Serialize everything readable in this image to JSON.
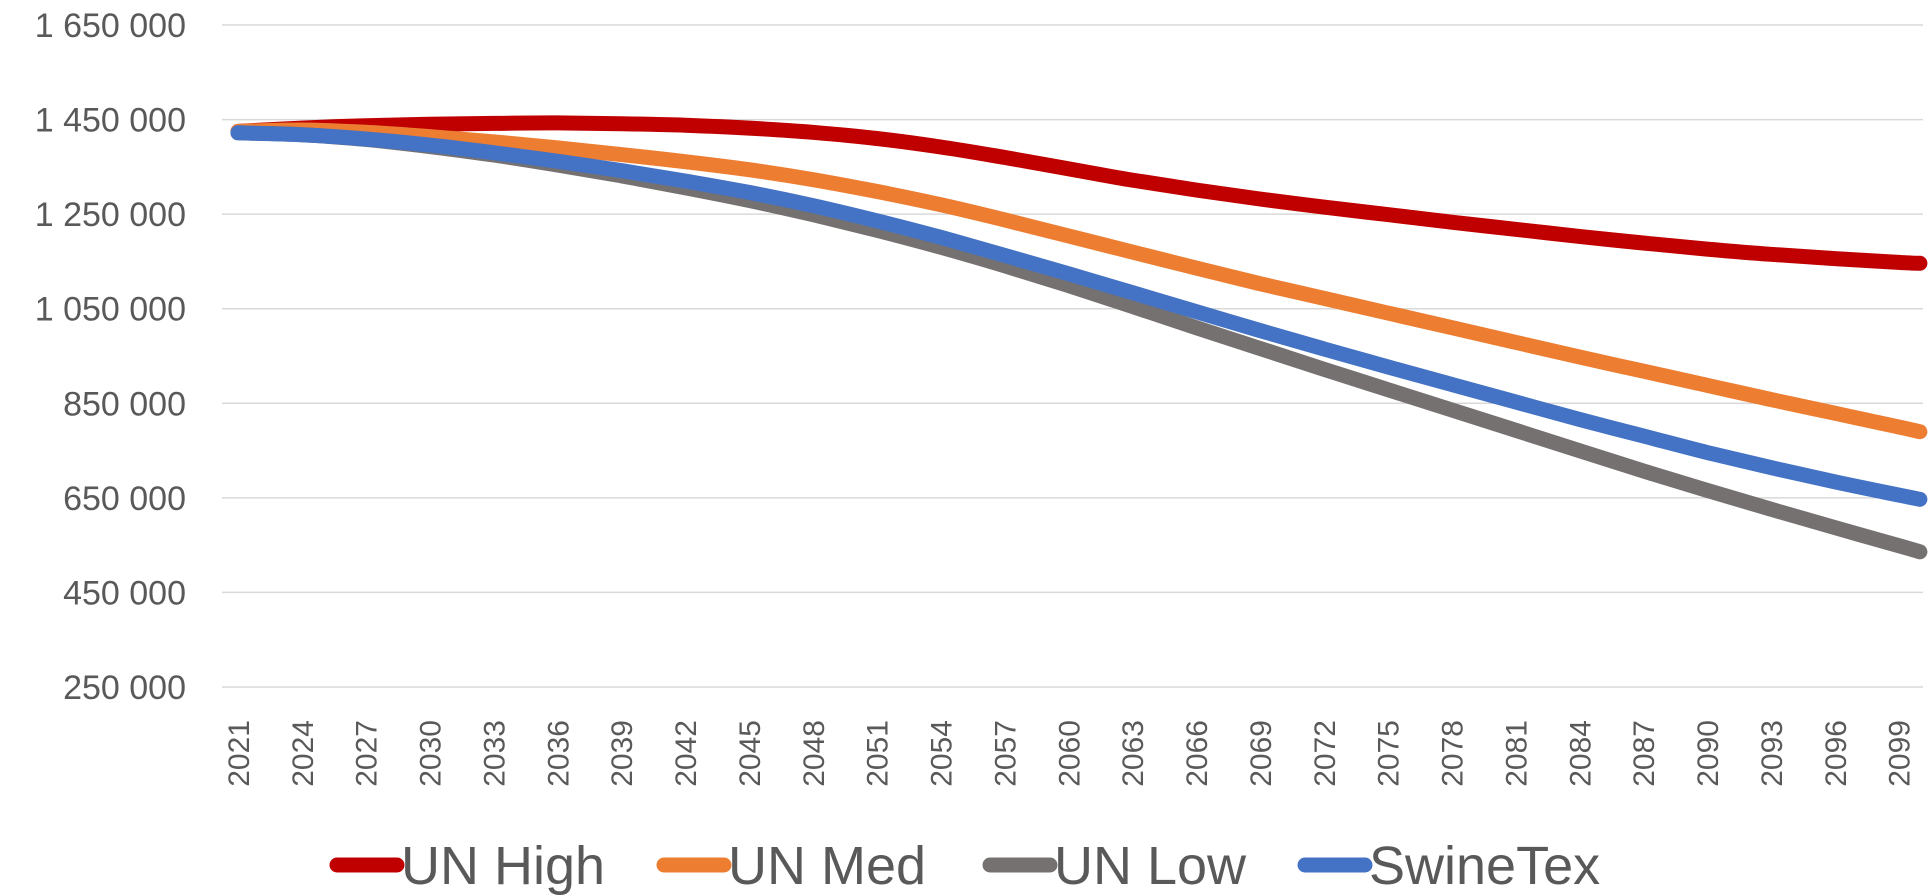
{
  "chart_data": {
    "type": "line",
    "title": "",
    "xlabel": "",
    "ylabel": "",
    "ylim": [
      250000,
      1650000
    ],
    "yticks": [
      "250 000",
      "450 000",
      "650 000",
      "850 000",
      "1 050 000",
      "1 250 000",
      "1 450 000",
      "1 650 000"
    ],
    "ytick_values": [
      250000,
      450000,
      650000,
      850000,
      1050000,
      1250000,
      1450000,
      1650000
    ],
    "xlim": [
      2021,
      2100
    ],
    "xticks": [
      "2021",
      "2024",
      "2027",
      "2030",
      "2033",
      "2036",
      "2039",
      "2042",
      "2045",
      "2048",
      "2051",
      "2054",
      "2057",
      "2060",
      "2063",
      "2066",
      "2069",
      "2072",
      "2075",
      "2078",
      "2081",
      "2084",
      "2087",
      "2090",
      "2093",
      "2096",
      "2099"
    ],
    "grid": true,
    "legend_position": "bottom",
    "x": [
      2021,
      2024,
      2027,
      2030,
      2033,
      2036,
      2039,
      2042,
      2045,
      2048,
      2051,
      2054,
      2057,
      2060,
      2063,
      2066,
      2069,
      2072,
      2075,
      2078,
      2081,
      2084,
      2087,
      2090,
      2093,
      2096,
      2099,
      2100
    ],
    "series": [
      {
        "name": "UN High",
        "color": "#c00000",
        "values": [
          1425000,
          1432000,
          1437000,
          1440000,
          1442000,
          1443000,
          1441000,
          1438000,
          1432000,
          1423000,
          1410000,
          1392000,
          1370000,
          1346000,
          1322000,
          1301000,
          1282000,
          1265000,
          1249000,
          1233000,
          1218000,
          1203000,
          1189000,
          1176000,
          1165000,
          1156000,
          1148000,
          1146000
        ]
      },
      {
        "name": "UN Med",
        "color": "#ed7d31",
        "values": [
          1425000,
          1428000,
          1423000,
          1414000,
          1403000,
          1390000,
          1376000,
          1361000,
          1344000,
          1323000,
          1298000,
          1270000,
          1238000,
          1204000,
          1170000,
          1136000,
          1103000,
          1072000,
          1041000,
          1010000,
          979000,
          948000,
          918000,
          888000,
          858000,
          829000,
          800000,
          790000
        ]
      },
      {
        "name": "UN Low",
        "color": "#767171",
        "values": [
          1422000,
          1418000,
          1408000,
          1393000,
          1375000,
          1354000,
          1331000,
          1306000,
          1279000,
          1249000,
          1216000,
          1180000,
          1141000,
          1099000,
          1055000,
          1010000,
          966000,
          922000,
          879000,
          836000,
          793000,
          750000,
          707000,
          666000,
          626000,
          587000,
          549000,
          536000
        ]
      },
      {
        "name": "SwineTex",
        "color": "#4472c4",
        "values": [
          1422000,
          1418000,
          1409000,
          1396000,
          1380000,
          1362000,
          1342000,
          1320000,
          1296000,
          1268000,
          1236000,
          1201000,
          1163000,
          1124000,
          1084000,
          1044000,
          1004000,
          965000,
          927000,
          890000,
          853000,
          816000,
          781000,
          746000,
          714000,
          684000,
          656000,
          647000
        ]
      }
    ]
  }
}
